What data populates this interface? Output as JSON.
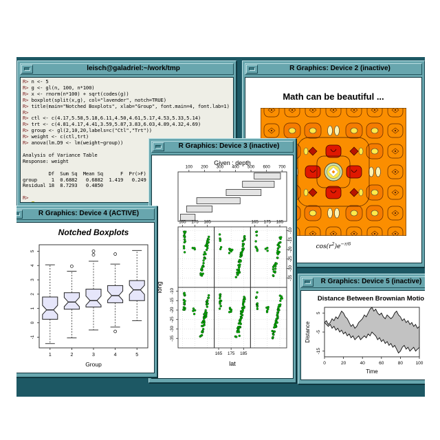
{
  "desktop": {
    "background": "#1d5864"
  },
  "windows": {
    "terminal": {
      "title": "leisch@galadriel:~/work/tmp",
      "prompt": "R>",
      "lines": [
        "R> n <- 5",
        "R> g <- gl(n, 100, n*100)",
        "R> x <- rnorm(n*100) + sqrt(codes(g))",
        "R> boxplot(split(x,g), col=\"lavender\", notch=TRUE)",
        "R> title(main=\"Notched Boxplots\", xlab=\"Group\", font.main=4, font.lab=1)",
        "R>",
        "R> ctl <- c(4.17,5.58,5.18,6.11,4.50,4.61,5.17,4.53,5.33,5.14)",
        "R> trt <- c(4.81,4.17,4.41,3.59,5.87,3.83,6.03,4.89,4.32,4.69)",
        "R> group <- gl(2,10,20,labels=c(\"Ctl\",\"Trt\"))",
        "R> weight <- c(ctl,trt)",
        "R> anova(lm.D9 <- lm(weight~group))",
        "",
        "Analysis of Variance Table",
        "Response: weight",
        "",
        "         Df  Sum Sq  Mean Sq      F  Pr(>F)",
        "group     1  0.6882   0.6882  1.419   0.249",
        "Residual 18  8.7293   0.4850",
        "",
        "R>",
        "R> "
      ]
    },
    "device2": {
      "title": "R Graphics: Device 2 (inactive)",
      "heading": "Math can be beautiful ...",
      "formula": {
        "pre": "cos(r",
        "sup1": "2",
        "mid": ")e",
        "sup2": "−r/6"
      },
      "palette": {
        "bg": "#fb8e00",
        "blob": "#f57c00",
        "red": "#df1800",
        "darkred": "#b71400",
        "yellow": "#ffe94a",
        "cream": "#fff3b0",
        "ring": "#cde0a8",
        "white": "#ffffff",
        "line": "#5a2500"
      }
    },
    "device3": {
      "title": "R Graphics: Device 3 (inactive)"
    },
    "device4": {
      "title": "R Graphics: Device 4 (ACTIVE)"
    },
    "device5": {
      "title": "R Graphics: Device 5 (inactive)"
    }
  },
  "chart_data": [
    {
      "id": "coplot",
      "type": "scatter",
      "given_label": "Given : depth",
      "xlabel": "lat",
      "ylabel": "long",
      "given_ticks": [
        100,
        200,
        300,
        400,
        500,
        600,
        700
      ],
      "given_range": [
        30,
        730
      ],
      "given_bars": [
        [
          45,
          140
        ],
        [
          85,
          250
        ],
        [
          150,
          430
        ],
        [
          340,
          565
        ],
        [
          445,
          650
        ],
        [
          520,
          690
        ]
      ],
      "bar_fill": "#e4e4e4",
      "rows": 2,
      "cols": 3,
      "x_ticks": [
        165,
        175,
        185
      ],
      "y_ticks": [
        -10,
        -15,
        -20,
        -25,
        -30,
        -35
      ],
      "xlim": [
        161.5,
        190.5
      ],
      "ylim": [
        -40,
        -8
      ],
      "point_color": "#00b400",
      "panels": [
        {
          "seed": 11,
          "strip_n": 18,
          "main_n": 42,
          "mid_n": 4
        },
        {
          "seed": 22,
          "strip_n": 14,
          "main_n": 50,
          "mid_n": 7
        },
        {
          "seed": 33,
          "strip_n": 10,
          "main_n": 46,
          "mid_n": 5
        },
        {
          "seed": 44,
          "strip_n": 16,
          "main_n": 38,
          "mid_n": 3
        },
        {
          "seed": 55,
          "strip_n": 6,
          "main_n": 44,
          "mid_n": 8
        },
        {
          "seed": 66,
          "strip_n": 8,
          "main_n": 32,
          "mid_n": 3
        }
      ],
      "strip": {
        "cx": 166.6,
        "y_top": -10.5,
        "y_bot": -21.5,
        "sx": 1.1
      },
      "main": {
        "x1": 185.9,
        "y1": -12.8,
        "x2": 179.8,
        "y2": -34.5,
        "jx": 1.7
      },
      "mid": {
        "cx": 174.5,
        "cy": -20,
        "sx": 1.6,
        "sy": 2.2
      }
    },
    {
      "id": "boxplot",
      "type": "boxplot",
      "title": "Notched Boxplots",
      "xlabel": "Group",
      "categories": [
        "1",
        "2",
        "3",
        "4",
        "5"
      ],
      "y_ticks": [
        -1,
        0,
        1,
        2,
        3,
        4,
        5
      ],
      "ylim": [
        -1.75,
        5.45
      ],
      "box_fill": "#e6e6fa",
      "stats": [
        {
          "lo": -1.45,
          "q1": 0.25,
          "med": 0.9,
          "q3": 1.8,
          "hi": 4.05,
          "out": []
        },
        {
          "lo": -1.05,
          "q1": 0.95,
          "med": 1.45,
          "q3": 2.1,
          "hi": 3.6,
          "out": [
            3.95
          ]
        },
        {
          "lo": -0.5,
          "q1": 1.1,
          "med": 1.55,
          "q3": 2.35,
          "hi": 4.3,
          "out": [
            4.75,
            5.0
          ]
        },
        {
          "lo": -0.3,
          "q1": 1.4,
          "med": 1.9,
          "q3": 2.6,
          "hi": 4.1,
          "out": [
            4.8,
            -0.6
          ]
        },
        {
          "lo": 0.15,
          "q1": 1.55,
          "med": 2.3,
          "q3": 2.95,
          "hi": 5.05,
          "out": []
        }
      ]
    },
    {
      "id": "brownian",
      "type": "area",
      "title": "Distance Between Brownian Motions",
      "xlabel": "Time",
      "ylabel": "Distance",
      "x_ticks": [
        0,
        20,
        40,
        60,
        80,
        100
      ],
      "y_ticks": [
        5,
        -5,
        -15
      ],
      "xlim": [
        0,
        100
      ],
      "ylim": [
        -18,
        8
      ],
      "band_fill": "#c2c2c2",
      "x_step": 2,
      "upper": [
        0,
        1,
        -1,
        0,
        2,
        1,
        3,
        2,
        4,
        6,
        5,
        3,
        2,
        0,
        -2,
        -1,
        -3,
        -2,
        0,
        1,
        2,
        4,
        3,
        5,
        7,
        8,
        6,
        7,
        5,
        4,
        5,
        3,
        2,
        4,
        3,
        2,
        3,
        5,
        6,
        4,
        3,
        1,
        2,
        0,
        1,
        -1,
        0,
        -2,
        -1,
        -3,
        -2
      ],
      "lower": [
        0,
        -1,
        -2,
        -1,
        -3,
        -2,
        -4,
        -3,
        -5,
        -4,
        -6,
        -5,
        -7,
        -6,
        -8,
        -7,
        -9,
        -8,
        -7,
        -9,
        -8,
        -7,
        -8,
        -6,
        -7,
        -5,
        -6,
        -7,
        -9,
        -8,
        -10,
        -9,
        -11,
        -10,
        -12,
        -11,
        -13,
        -12,
        -14,
        -16,
        -15,
        -13,
        -12,
        -14,
        -13,
        -15,
        -14,
        -13,
        -15,
        -14,
        -13
      ]
    }
  ]
}
